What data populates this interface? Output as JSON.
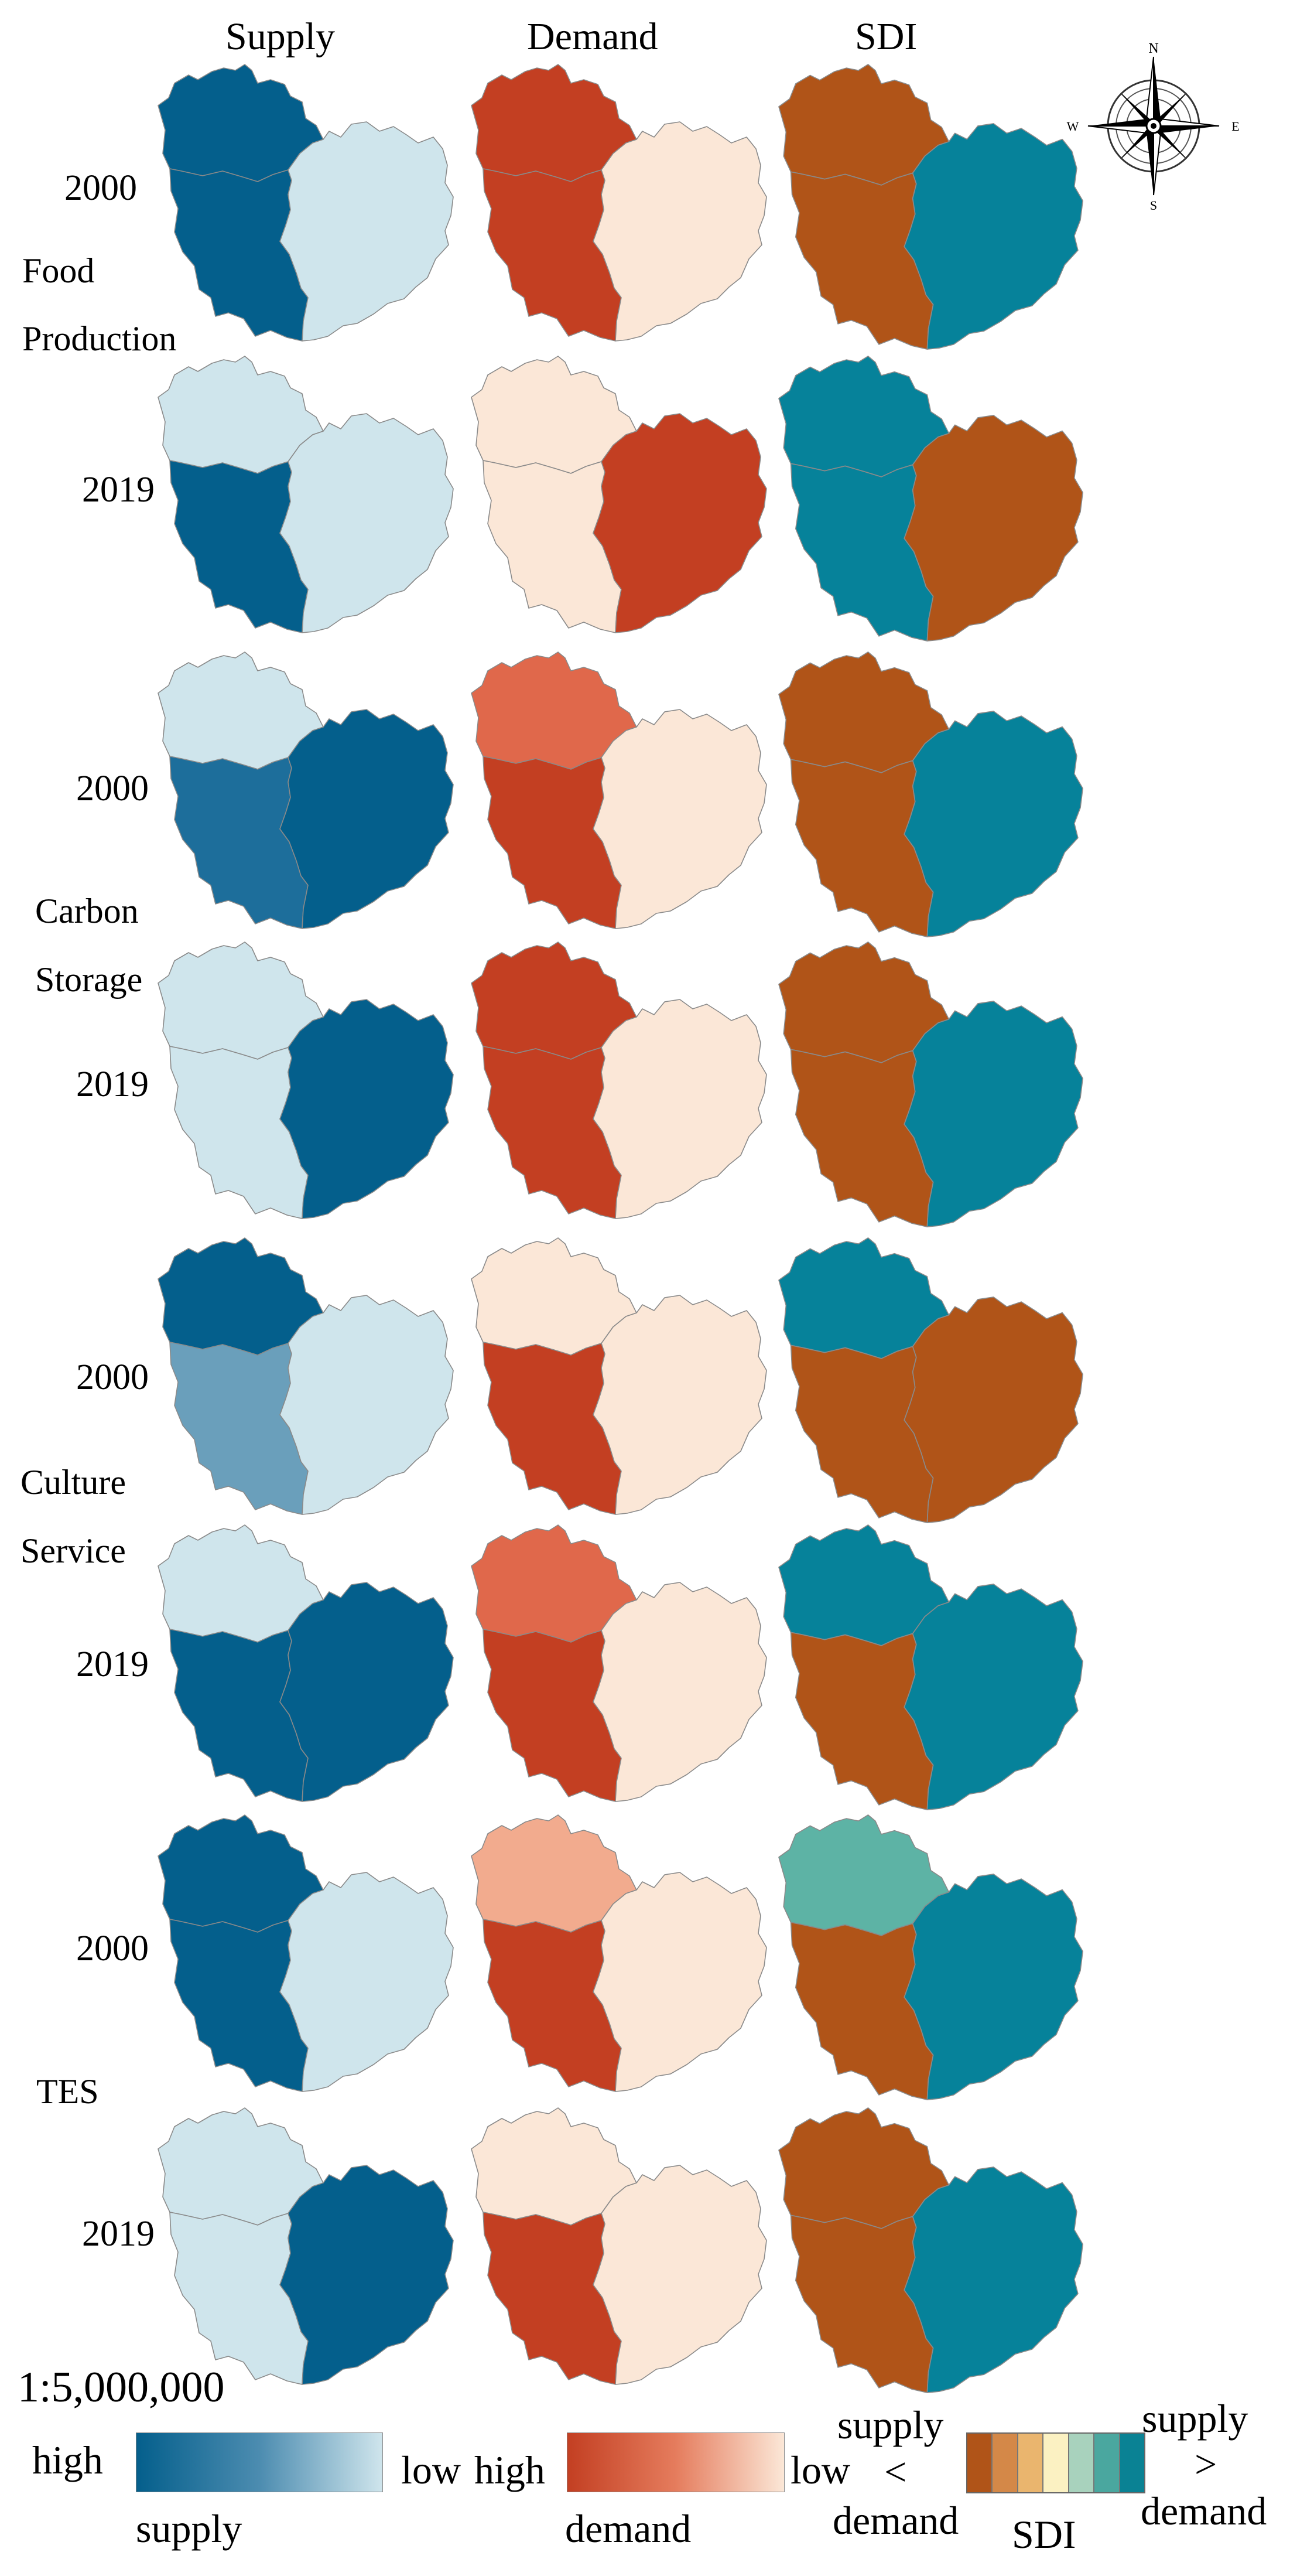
{
  "columns": [
    "Supply",
    "Demand",
    "SDI"
  ],
  "services": [
    {
      "label_lines": [
        "Food",
        "Production"
      ],
      "rows": [
        {
          "year": "2000",
          "supply": [
            "high",
            "high",
            "low"
          ],
          "demand": [
            "high",
            "high",
            "low"
          ],
          "sdi": [
            "deficit",
            "deficit",
            "surplus"
          ]
        },
        {
          "year": "2019",
          "supply": [
            "low",
            "high",
            "low"
          ],
          "demand": [
            "low",
            "low",
            "high"
          ],
          "sdi": [
            "surplus",
            "surplus",
            "deficit"
          ]
        }
      ]
    },
    {
      "label_lines": [
        "Carbon",
        "Storage"
      ],
      "rows": [
        {
          "year": "2000",
          "supply": [
            "low",
            "mid-high",
            "high"
          ],
          "demand": [
            "mid-high",
            "high",
            "low"
          ],
          "sdi": [
            "deficit",
            "deficit",
            "surplus"
          ]
        },
        {
          "year": "2019",
          "supply": [
            "low",
            "low",
            "high"
          ],
          "demand": [
            "high",
            "high",
            "low"
          ],
          "sdi": [
            "deficit",
            "deficit",
            "surplus"
          ]
        }
      ]
    },
    {
      "label_lines": [
        "Culture",
        "Service"
      ],
      "rows": [
        {
          "year": "2000",
          "supply": [
            "high",
            "mid",
            "low"
          ],
          "demand": [
            "low",
            "high",
            "low"
          ],
          "sdi": [
            "surplus",
            "deficit",
            "deficit"
          ]
        },
        {
          "year": "2019",
          "supply": [
            "low",
            "high",
            "high"
          ],
          "demand": [
            "mid-high",
            "high",
            "low"
          ],
          "sdi": [
            "surplus",
            "deficit",
            "surplus"
          ]
        }
      ]
    },
    {
      "label_lines": [
        "TES"
      ],
      "rows": [
        {
          "year": "2000",
          "supply": [
            "high",
            "high",
            "low"
          ],
          "demand": [
            "mid",
            "high",
            "low"
          ],
          "sdi": [
            "mild-surplus",
            "deficit",
            "surplus"
          ]
        },
        {
          "year": "2019",
          "supply": [
            "low",
            "low",
            "high"
          ],
          "demand": [
            "low",
            "high",
            "low"
          ],
          "sdi": [
            "deficit",
            "deficit",
            "surplus"
          ]
        }
      ]
    }
  ],
  "colors": {
    "supply": {
      "high": "#045f8c",
      "mid-high": "#1d6e9b",
      "mid": "#6a9fbb",
      "low": "#cfe5ec"
    },
    "demand": {
      "high": "#c33f22",
      "mid-high": "#e0684b",
      "mid": "#f2ab8e",
      "low": "#fbe7d7"
    },
    "sdi": {
      "deficit": "#b05418",
      "surplus": "#06829a",
      "mild-surplus": "#5db3a5"
    },
    "outline": "#8a8a8a"
  },
  "compass": {
    "n": "N",
    "s": "S",
    "e": "E",
    "w": "W"
  },
  "scale_text": "1:5,000,000",
  "legend": {
    "supply_high": "high",
    "supply_low": "low",
    "supply_name": "supply",
    "demand_high": "high",
    "demand_low": "low",
    "demand_name": "demand",
    "sdi_left_top": "supply",
    "sdi_left_symbol": "<",
    "sdi_left_bottom": "demand",
    "sdi_right_top": "supply",
    "sdi_right_symbol": ">",
    "sdi_right_bottom": "demand",
    "sdi_name": "SDI",
    "sdi_classes": [
      "#b05418",
      "#d48848",
      "#eab56e",
      "#fbf1c2",
      "#a8d2bd",
      "#4aa79f",
      "#0a8294"
    ],
    "supply_gradient": [
      "#045f8c",
      "#4c8cb0",
      "#cfe5ec"
    ],
    "demand_gradient": [
      "#c33f22",
      "#e57c5d",
      "#fbe7d7"
    ]
  }
}
